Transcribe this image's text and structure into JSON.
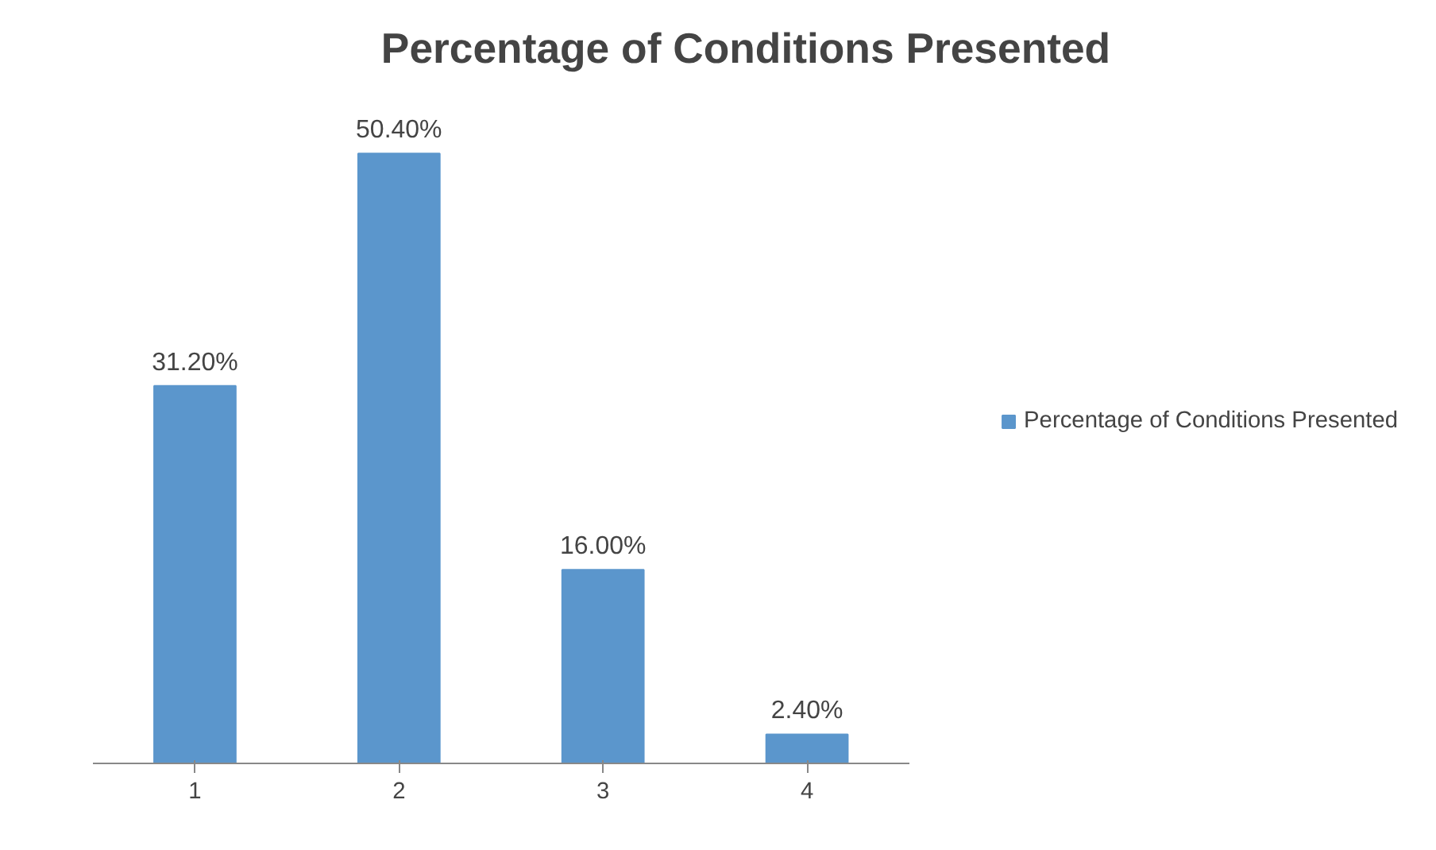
{
  "chart_data": {
    "type": "bar",
    "title": "Percentage of Conditions Presented",
    "categories": [
      "1",
      "2",
      "3",
      "4"
    ],
    "series": [
      {
        "name": "Percentage of Conditions Presented",
        "color": "#5b96cc",
        "values": [
          31.2,
          50.4,
          16.0,
          2.4
        ],
        "value_labels": [
          "31.20%",
          "50.40%",
          "16.00%",
          "2.40%"
        ]
      }
    ],
    "legend": "right",
    "grid": false
  }
}
